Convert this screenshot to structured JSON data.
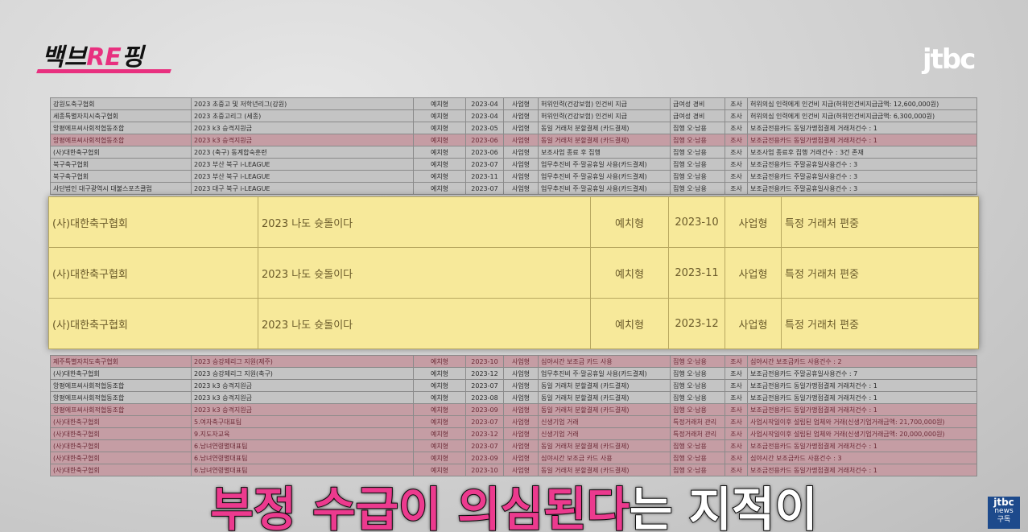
{
  "header": {
    "logo": [
      "백브",
      "RE",
      "핑"
    ],
    "channel": "jtbc"
  },
  "table_top": {
    "rows": [
      [
        "강원도축구협회",
        "2023 초중고 및 저학년리그(강원)",
        "예치형",
        "2023-04",
        "사업형",
        "허위인력(건강보험) 인건비 지급",
        "급여성 경비",
        "조사",
        "허위의심 인력에게 인건비 지급(허위인건비지급금액: 12,600,000원)"
      ],
      [
        "세종특별자치시축구협회",
        "2023 초중고리그 (세종)",
        "예치형",
        "2023-04",
        "사업형",
        "허위인력(건강보험) 인건비 지급",
        "급여성 경비",
        "조사",
        "허위의심 인력에게 인건비 지급(허위인건비지급금액: 6,300,000원)"
      ],
      [
        "앙평에프씨사회적협동조합",
        "2023 k3 승격지원금",
        "예치형",
        "2023-05",
        "사업형",
        "동일 거래처 분할결제 (카드결제)",
        "집행 오·남용",
        "조사",
        "보조금전용카드 동일가맹점결제 거래처건수 : 1"
      ],
      [
        "앙평에프씨사회적협동조합",
        "2023 k3 승격지원금",
        "예치형",
        "2023-06",
        "사업형",
        "동일 거래처 분할결제 (카드결제)",
        "집행 오·남용",
        "조사",
        "보조금전용카드 동일가맹점결제 거래처건수 : 1"
      ],
      [
        "(사)대한축구협회",
        "2023 (축구) 동계합숙훈련",
        "예치형",
        "2023-06",
        "사업형",
        "보조사업 종료 후 집행",
        "집행 오·남용",
        "조사",
        "보조사업 종료후 집행 거래건수 : 3건 존재"
      ],
      [
        "북구축구협회",
        "2023 부산 북구 i-LEAGUE",
        "예치형",
        "2023-07",
        "사업형",
        "업무추진비 주·말공휴일 사용(카드결제)",
        "집행 오·남용",
        "조사",
        "보조금전용카드 주말공휴일사용건수 : 3"
      ],
      [
        "북구축구협회",
        "2023 부산 북구 i-LEAGUE",
        "예치형",
        "2023-11",
        "사업형",
        "업무추진비 주·말공휴일 사용(카드결제)",
        "집행 오·남용",
        "조사",
        "보조금전용카드 주말공휴일사용건수 : 3"
      ],
      [
        "사단법인 대구광역시 대불스포츠클럽",
        "2023 대구 북구 i-LEAGUE",
        "예치형",
        "2023-07",
        "사업형",
        "업무추진비 주·말공휴일 사용(카드결제)",
        "집행 오·남용",
        "조사",
        "보조금전용카드 주말공휴일사용건수 : 3"
      ]
    ]
  },
  "highlight": {
    "rows": [
      [
        "(사)대한축구협회",
        "2023 나도 슛돌이다",
        "예치형",
        "2023-10",
        "사업형",
        "특정 거래처 편중"
      ],
      [
        "(사)대한축구협회",
        "2023 나도 슛돌이다",
        "예치형",
        "2023-11",
        "사업형",
        "특정 거래처 편중"
      ],
      [
        "(사)대한축구협회",
        "2023 나도 슛돌이다",
        "예치형",
        "2023-12",
        "사업형",
        "특정 거래처 편중"
      ]
    ]
  },
  "table_bottom": {
    "rows": [
      [
        "제주특별자치도축구협회",
        "2023 승강제리그 지원(제주)",
        "예치형",
        "2023-10",
        "사업형",
        "심야시간 보조금 카드 사용",
        "집행 오·남용",
        "조사",
        "심야시간 보조금카드 사용건수 : 2"
      ],
      [
        "(사)대한축구협회",
        "2023 승강제리그 지원(축구)",
        "예치형",
        "2023-12",
        "사업형",
        "업무추진비 주·말공휴일 사용(카드결제)",
        "집행 오·남용",
        "조사",
        "보조금전용카드 주말공휴일사용건수 : 7"
      ],
      [
        "앙평에프씨사회적협동조합",
        "2023 k3 승격지원금",
        "예치형",
        "2023-07",
        "사업형",
        "동일 거래처 분할결제 (카드결제)",
        "집행 오·남용",
        "조사",
        "보조금전용카드 동일가맹점결제 거래처건수 : 1"
      ],
      [
        "앙평에프씨사회적협동조합",
        "2023 k3 승격지원금",
        "예치형",
        "2023-08",
        "사업형",
        "동일 거래처 분할결제 (카드결제)",
        "집행 오·남용",
        "조사",
        "보조금전용카드 동일가맹점결제 거래처건수 : 1"
      ],
      [
        "앙평에프씨사회적협동조합",
        "2023 k3 승격지원금",
        "예치형",
        "2023-09",
        "사업형",
        "동일 거래처 분할결제 (카드결제)",
        "집행 오·남용",
        "조사",
        "보조금전용카드 동일가맹점결제 거래처건수 : 1"
      ],
      [
        "(사)대한축구협회",
        "5.여자축구대표팀",
        "예치형",
        "2023-07",
        "사업형",
        "신생기업 거래",
        "특정거래처 관리",
        "조사",
        "사업시작일이후 설립된 업체와 거래(신생기업거래금액: 21,700,000원)"
      ],
      [
        "(사)대한축구협회",
        "9.지도자교육",
        "예치형",
        "2023-12",
        "사업형",
        "신생기업 거래",
        "특정거래처 관리",
        "조사",
        "사업시작일이후 설립된 업체와 거래(신생기업거래금액: 20,000,000원)"
      ],
      [
        "(사)대한축구협회",
        "6.남녀연령별대표팀",
        "예치형",
        "2023-07",
        "사업형",
        "동일 거래처 분할결제 (카드결제)",
        "집행 오·남용",
        "조사",
        "보조금전용카드 동일가맹점결제 거래처건수 : 1"
      ],
      [
        "(사)대한축구협회",
        "6.남녀연령별대표팀",
        "예치형",
        "2023-09",
        "사업형",
        "심야시간 보조금 카드 사용",
        "집행 오·남용",
        "조사",
        "심야시간 보조금카드 사용건수 : 3"
      ],
      [
        "(사)대한축구협회",
        "6.남녀연령별대표팀",
        "예치형",
        "2023-10",
        "사업형",
        "동일 거래처 분할결제 (카드결제)",
        "집행 오·남용",
        "조사",
        "보조금전용카드 동일가맹점결제 거래처건수 : 1"
      ]
    ]
  },
  "caption": {
    "emphasis": "부정 수급이 의심된다",
    "rest": "는 지적이"
  },
  "badge": {
    "logo": "jtbc",
    "sub": "news",
    "action": "구독"
  }
}
